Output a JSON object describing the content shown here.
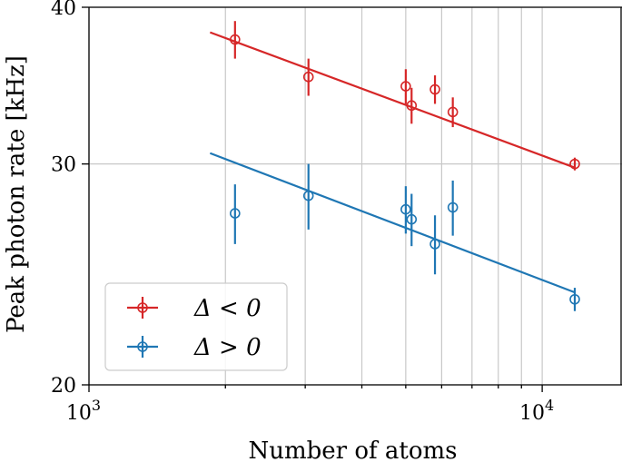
{
  "chart_data": {
    "type": "scatter",
    "xlabel": "Number of atoms",
    "ylabel": "Peak photon rate [kHz]",
    "x_scale": "log",
    "y_scale": "log",
    "xlim": [
      1000,
      15000
    ],
    "ylim": [
      20,
      40
    ],
    "grid": true,
    "legend_position": "lower-left",
    "x_ticks": [
      {
        "value": 1000,
        "base": "10",
        "exp": "3"
      },
      {
        "value": 10000,
        "base": "10",
        "exp": "4"
      }
    ],
    "y_ticks": [
      {
        "value": 20,
        "label": "20"
      },
      {
        "value": 30,
        "label": "30"
      },
      {
        "value": 40,
        "label": "40"
      }
    ],
    "series": [
      {
        "name": "Δ < 0",
        "color": "#d62728",
        "points": [
          {
            "x": 2100,
            "y": 37.7,
            "yerr": 1.3
          },
          {
            "x": 3050,
            "y": 35.2,
            "yerr": 1.2
          },
          {
            "x": 5000,
            "y": 34.6,
            "yerr": 1.1
          },
          {
            "x": 5150,
            "y": 33.4,
            "yerr": 1.1
          },
          {
            "x": 5800,
            "y": 34.4,
            "yerr": 0.9
          },
          {
            "x": 6350,
            "y": 33.0,
            "yerr": 0.9
          },
          {
            "x": 11800,
            "y": 30.0,
            "yerr": 0.35
          }
        ],
        "fit": {
          "x": [
            1850,
            11800
          ],
          "y": [
            38.2,
            29.8
          ]
        }
      },
      {
        "name": "Δ > 0",
        "color": "#1f77b4",
        "points": [
          {
            "x": 2100,
            "y": 27.4,
            "yerr": 1.5
          },
          {
            "x": 3050,
            "y": 28.3,
            "yerr": 1.7
          },
          {
            "x": 5000,
            "y": 27.6,
            "yerr": 1.2
          },
          {
            "x": 5150,
            "y": 27.1,
            "yerr": 1.3
          },
          {
            "x": 5800,
            "y": 25.9,
            "yerr": 1.4
          },
          {
            "x": 6350,
            "y": 27.7,
            "yerr": 1.4
          },
          {
            "x": 11800,
            "y": 23.4,
            "yerr": 0.5
          }
        ],
        "fit": {
          "x": [
            1850,
            11800
          ],
          "y": [
            30.6,
            23.7
          ]
        }
      }
    ]
  }
}
